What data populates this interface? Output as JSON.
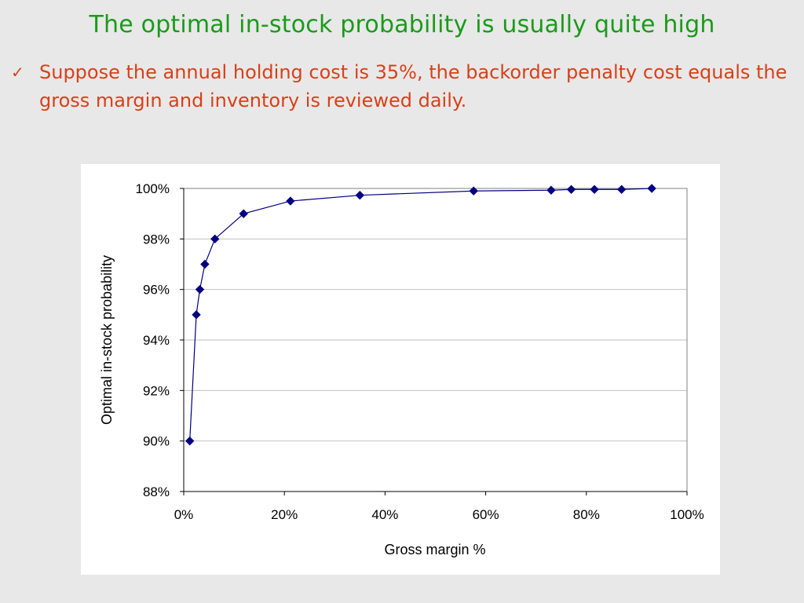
{
  "slide": {
    "title": "The optimal in-stock probability is usually quite high",
    "bullet_icon": "check-mark-icon",
    "bullet_text": "Suppose the annual holding cost is 35%, the backorder penalty cost equals the gross margin and inventory is reviewed daily."
  },
  "colors": {
    "title": "#1a9a1a",
    "bullet": "#d8401a",
    "series": "#000080",
    "grid": "#c0c0c0"
  },
  "chart_data": {
    "type": "scatter",
    "title": "",
    "xlabel": "Gross margin %",
    "ylabel": "Optimal in-stock probability",
    "xlim": [
      0,
      100
    ],
    "ylim": [
      88,
      100
    ],
    "x_ticks": [
      "0%",
      "20%",
      "40%",
      "60%",
      "80%",
      "100%"
    ],
    "y_ticks": [
      "88%",
      "90%",
      "92%",
      "94%",
      "96%",
      "98%",
      "100%"
    ],
    "grid": "horizontal",
    "legend": "none",
    "series": [
      {
        "marker": "diamond",
        "x": [
          1.2,
          2.5,
          3.2,
          4.2,
          6.2,
          11.9,
          21.2,
          35.0,
          57.6,
          73.0,
          77.0,
          81.6,
          87.0,
          93.0
        ],
        "y": [
          90.0,
          95.0,
          96.0,
          97.0,
          98.0,
          99.0,
          99.5,
          99.73,
          99.9,
          99.93,
          99.96,
          99.96,
          99.96,
          100.0
        ]
      }
    ]
  }
}
